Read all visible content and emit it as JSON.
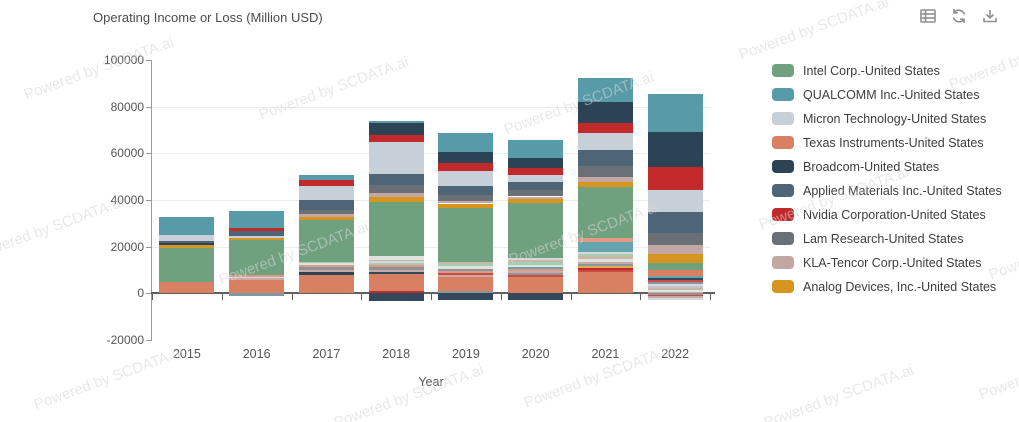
{
  "title": "Operating Income or Loss (Million USD)",
  "watermark": {
    "text": "Powered by SCDATA.ai"
  },
  "toolbar": {
    "icons": [
      {
        "name": "data-table"
      },
      {
        "name": "refresh"
      },
      {
        "name": "download"
      }
    ]
  },
  "chart_data": {
    "type": "bar",
    "stacked": true,
    "title": "Operating Income or Loss (Million USD)",
    "xlabel": "Year",
    "ylabel": "",
    "categories": [
      "2015",
      "2016",
      "2017",
      "2018",
      "2019",
      "2020",
      "2021",
      "2022"
    ],
    "ylim": [
      -20000,
      100000
    ],
    "ytick_interval": 20000,
    "yticks": [
      100000,
      80000,
      60000,
      40000,
      20000,
      0,
      -20000
    ],
    "grid": true,
    "legend_position": "right",
    "colors": {
      "intel": "#6fa17f",
      "qualcomm": "#579aa8",
      "micron": "#c7cfd9",
      "ti": "#d97f62",
      "broadcom": "#2c4255",
      "amat": "#4e6577",
      "nvidia": "#c1292b",
      "lam": "#6b7077",
      "kla": "#c2a7a2",
      "adi": "#d6951f",
      "salmon2": "#e09a84",
      "rose": "#c9aaa5",
      "pale": "#dde4df",
      "lgreen": "#a9ccb1",
      "tan": "#c6b8a6",
      "gray2": "#8d939b",
      "lgray2": "#d4d9df",
      "teal2": "#66a4ae",
      "red2": "#cb4a41",
      "lavender": "#c6c2cd",
      "gold2": "#dcae56",
      "navy": "#32485c",
      "steel": "#7e98a8"
    },
    "series": [
      {
        "name": "Intel Corp.-United States",
        "color_key": "intel",
        "values": [
          14500,
          15000,
          17900,
          23400,
          22800,
          23500,
          21800,
          3000
        ]
      },
      {
        "name": "QUALCOMM Inc.-United States",
        "color_key": "qualcomm",
        "values": [
          7800,
          7600,
          2300,
          800,
          7900,
          7900,
          10400,
          16300
        ]
      },
      {
        "name": "Micron Technology-United States",
        "color_key": "micron",
        "values": [
          2600,
          800,
          6300,
          14000,
          6600,
          3100,
          7200,
          9700
        ]
      },
      {
        "name": "Texas Instruments-United States",
        "color_key": "ti",
        "values": [
          4800,
          5800,
          7900,
          7400,
          6400,
          6800,
          9300,
          2600
        ]
      },
      {
        "name": "Broadcom-United States",
        "color_key": "broadcom",
        "values": [
          800,
          0,
          1200,
          5100,
          4700,
          4300,
          8600,
          14800
        ]
      },
      {
        "name": "Applied Materials Inc.-United States",
        "color_key": "amat",
        "values": [
          700,
          2000,
          4000,
          4700,
          3900,
          3300,
          6900,
          9000
        ]
      },
      {
        "name": "Nvidia Corporation-United States",
        "color_key": "nvidia",
        "values": [
          0,
          1100,
          2450,
          3900,
          3400,
          2900,
          5300,
          9900
        ]
      },
      {
        "name": "Lam Research-United States",
        "color_key": "lam",
        "values": [
          0,
          0,
          1900,
          3400,
          2600,
          2900,
          4600,
          4850
        ]
      },
      {
        "name": "KLA-Tencor Corp.-United States",
        "color_key": "kla",
        "values": [
          0,
          0,
          1150,
          1450,
          1000,
          1000,
          2100,
          3750
        ]
      },
      {
        "name": "Analog Devices, Inc.-United States",
        "color_key": "adi",
        "values": [
          1500,
          1100,
          1300,
          2100,
          2100,
          1900,
          2100,
          3850
        ]
      }
    ],
    "bars": [
      {
        "year": "2015",
        "segments": [
          [
            "ti",
            4800
          ],
          [
            "intel",
            14500
          ],
          [
            "adi",
            1500
          ],
          [
            "broadcom",
            800
          ],
          [
            "amat",
            700
          ],
          [
            "micron",
            2600
          ],
          [
            "qualcomm",
            7800
          ]
        ]
      },
      {
        "year": "2016",
        "segments": [
          [
            "steel",
            -1000
          ],
          [
            "ti",
            5800
          ],
          [
            "rose",
            700
          ],
          [
            "lgray2",
            600
          ],
          [
            "salmon2",
            700
          ],
          [
            "intel",
            15000
          ],
          [
            "adi",
            1100
          ],
          [
            "micron",
            800
          ],
          [
            "amat",
            2000
          ],
          [
            "nvidia",
            1100
          ],
          [
            "qualcomm",
            7600
          ]
        ]
      },
      {
        "year": "2017",
        "segments": [
          [
            "ti",
            7900
          ],
          [
            "broadcom",
            1200
          ],
          [
            "rose",
            1100
          ],
          [
            "gray2",
            900
          ],
          [
            "salmon2",
            900
          ],
          [
            "pale",
            800
          ],
          [
            "lgreen",
            800
          ],
          [
            "intel",
            17900
          ],
          [
            "adi",
            1300
          ],
          [
            "kla",
            1150
          ],
          [
            "lam",
            1900
          ],
          [
            "amat",
            4000
          ],
          [
            "micron",
            6300
          ],
          [
            "nvidia",
            2450
          ],
          [
            "qualcomm",
            2300
          ]
        ]
      },
      {
        "year": "2018",
        "segments": [
          [
            "navy",
            -3500
          ],
          [
            "nvidia",
            1000
          ],
          [
            "ti",
            7400
          ],
          [
            "navy",
            900
          ],
          [
            "rose",
            900
          ],
          [
            "gray2",
            900
          ],
          [
            "salmon2",
            1000
          ],
          [
            "lgreen",
            800
          ],
          [
            "lgray2",
            800
          ],
          [
            "tan",
            700
          ],
          [
            "pale",
            1500
          ],
          [
            "intel",
            23400
          ],
          [
            "adi",
            2100
          ],
          [
            "kla",
            1450
          ],
          [
            "lam",
            3400
          ],
          [
            "amat",
            4700
          ],
          [
            "micron",
            14000
          ],
          [
            "nvidia",
            2900
          ],
          [
            "broadcom",
            5100
          ],
          [
            "qualcomm",
            800
          ]
        ]
      },
      {
        "year": "2019",
        "segments": [
          [
            "navy",
            -2800
          ],
          [
            "gray2",
            800
          ],
          [
            "ti",
            6400
          ],
          [
            "rose",
            800
          ],
          [
            "red2",
            700
          ],
          [
            "salmon2",
            900
          ],
          [
            "gray2",
            800
          ],
          [
            "pale",
            1200
          ],
          [
            "lgreen",
            900
          ],
          [
            "tan",
            1100
          ],
          [
            "intel",
            22800
          ],
          [
            "adi",
            2100
          ],
          [
            "kla",
            1000
          ],
          [
            "lam",
            2600
          ],
          [
            "amat",
            3900
          ],
          [
            "micron",
            6600
          ],
          [
            "nvidia",
            3400
          ],
          [
            "broadcom",
            4700
          ],
          [
            "qualcomm",
            7900
          ]
        ]
      },
      {
        "year": "2020",
        "segments": [
          [
            "navy",
            -3000
          ],
          [
            "ti",
            6800
          ],
          [
            "red2",
            900
          ],
          [
            "gray2",
            900
          ],
          [
            "rose",
            900
          ],
          [
            "salmon2",
            1000
          ],
          [
            "teal2",
            800
          ],
          [
            "pale",
            1000
          ],
          [
            "lgreen",
            1000
          ],
          [
            "tan",
            1000
          ],
          [
            "lgray2",
            800
          ],
          [
            "intel",
            23500
          ],
          [
            "adi",
            1900
          ],
          [
            "kla",
            1000
          ],
          [
            "lam",
            2900
          ],
          [
            "amat",
            3300
          ],
          [
            "micron",
            3100
          ],
          [
            "nvidia",
            2900
          ],
          [
            "broadcom",
            4300
          ],
          [
            "qualcomm",
            7900
          ]
        ]
      },
      {
        "year": "2021",
        "segments": [
          [
            "ti",
            9300
          ],
          [
            "red2",
            800
          ],
          [
            "nvidia",
            700
          ],
          [
            "gold2",
            800
          ],
          [
            "gray2",
            900
          ],
          [
            "rose",
            900
          ],
          [
            "pale",
            1400
          ],
          [
            "tan",
            1100
          ],
          [
            "lgreen",
            1000
          ],
          [
            "lgray2",
            1000
          ],
          [
            "teal2",
            4300
          ],
          [
            "salmon2",
            1700
          ],
          [
            "intel",
            21800
          ],
          [
            "adi",
            2100
          ],
          [
            "kla",
            2100
          ],
          [
            "lam",
            4600
          ],
          [
            "amat",
            6900
          ],
          [
            "micron",
            7200
          ],
          [
            "nvidia",
            4600
          ],
          [
            "broadcom",
            8600
          ],
          [
            "qualcomm",
            10400
          ]
        ]
      },
      {
        "year": "2022",
        "segments": [
          [
            "gray2",
            -700
          ],
          [
            "red2",
            -600
          ],
          [
            "rose",
            -700
          ],
          [
            "lgray2",
            -900
          ],
          [
            "rose",
            700
          ],
          [
            "pale",
            900
          ],
          [
            "tan",
            800
          ],
          [
            "lavender",
            700
          ],
          [
            "lgray2",
            900
          ],
          [
            "gray2",
            800
          ],
          [
            "red2",
            800
          ],
          [
            "navy",
            900
          ],
          [
            "teal2",
            1100
          ],
          [
            "ti",
            2600
          ],
          [
            "intel",
            3000
          ],
          [
            "adi",
            3850
          ],
          [
            "kla",
            3750
          ],
          [
            "lam",
            4850
          ],
          [
            "amat",
            9000
          ],
          [
            "micron",
            9700
          ],
          [
            "nvidia",
            9900
          ],
          [
            "broadcom",
            14800
          ],
          [
            "qualcomm",
            16300
          ]
        ]
      }
    ]
  }
}
